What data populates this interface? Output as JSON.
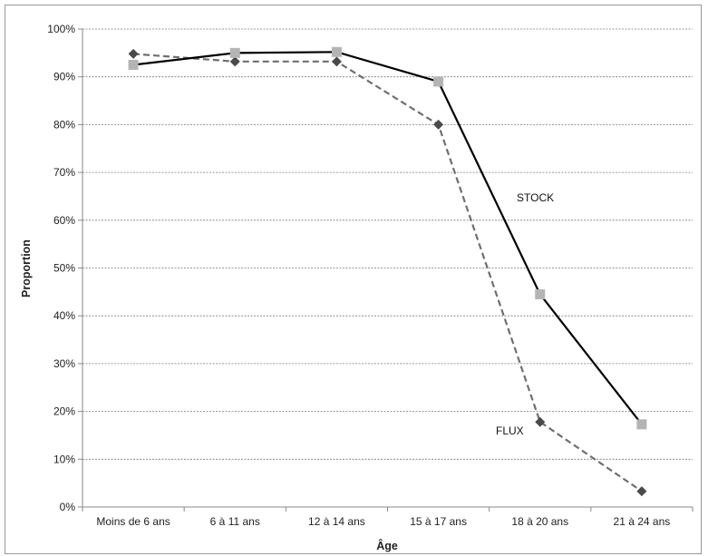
{
  "chart_data": {
    "type": "line",
    "xlabel": "Âge",
    "ylabel": "Proportion",
    "categories": [
      "Moins de 6 ans",
      "6 à 11 ans",
      "12 à 14 ans",
      "15 à 17 ans",
      "18 à 20 ans",
      "21 à 24 ans"
    ],
    "yticks": [
      "0%",
      "10%",
      "20%",
      "30%",
      "40%",
      "50%",
      "60%",
      "70%",
      "80%",
      "90%",
      "100%"
    ],
    "ylim": [
      0,
      100
    ],
    "grid": true,
    "series": [
      {
        "name": "STOCK",
        "values": [
          92.5,
          95.0,
          95.2,
          89.0,
          44.5,
          17.3
        ],
        "line_color": "#000000",
        "line_style": "solid",
        "marker": "square",
        "marker_color": "#b4b4b4"
      },
      {
        "name": "FLUX",
        "values": [
          94.8,
          93.2,
          93.2,
          80.0,
          17.8,
          3.3
        ],
        "line_color": "#6f6f6f",
        "line_style": "dashed",
        "marker": "diamond",
        "marker_color": "#4a4a4a"
      }
    ]
  }
}
